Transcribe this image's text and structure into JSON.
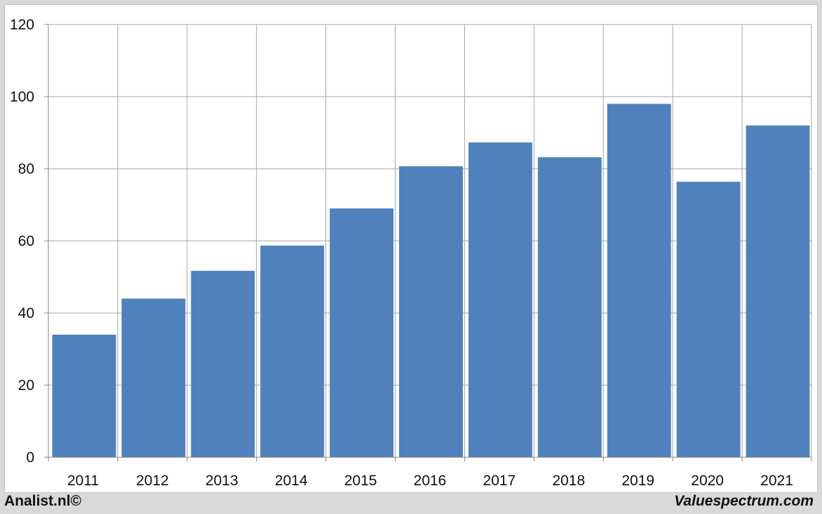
{
  "chart_data": {
    "type": "bar",
    "categories": [
      "2011",
      "2012",
      "2013",
      "2014",
      "2015",
      "2016",
      "2017",
      "2018",
      "2019",
      "2020",
      "2021"
    ],
    "values": [
      34,
      44,
      51.7,
      58.7,
      69,
      80.7,
      87.3,
      83.2,
      98,
      76.4,
      92
    ],
    "ylim": [
      0,
      120
    ],
    "yticks": [
      0,
      20,
      40,
      60,
      80,
      100,
      120
    ],
    "grid": true,
    "bar_color": "#4f81bd",
    "grid_color": "#a6a6a6"
  },
  "footer": {
    "left_text": "Analist.nl©",
    "right_text": "Valuespectrum.com"
  }
}
